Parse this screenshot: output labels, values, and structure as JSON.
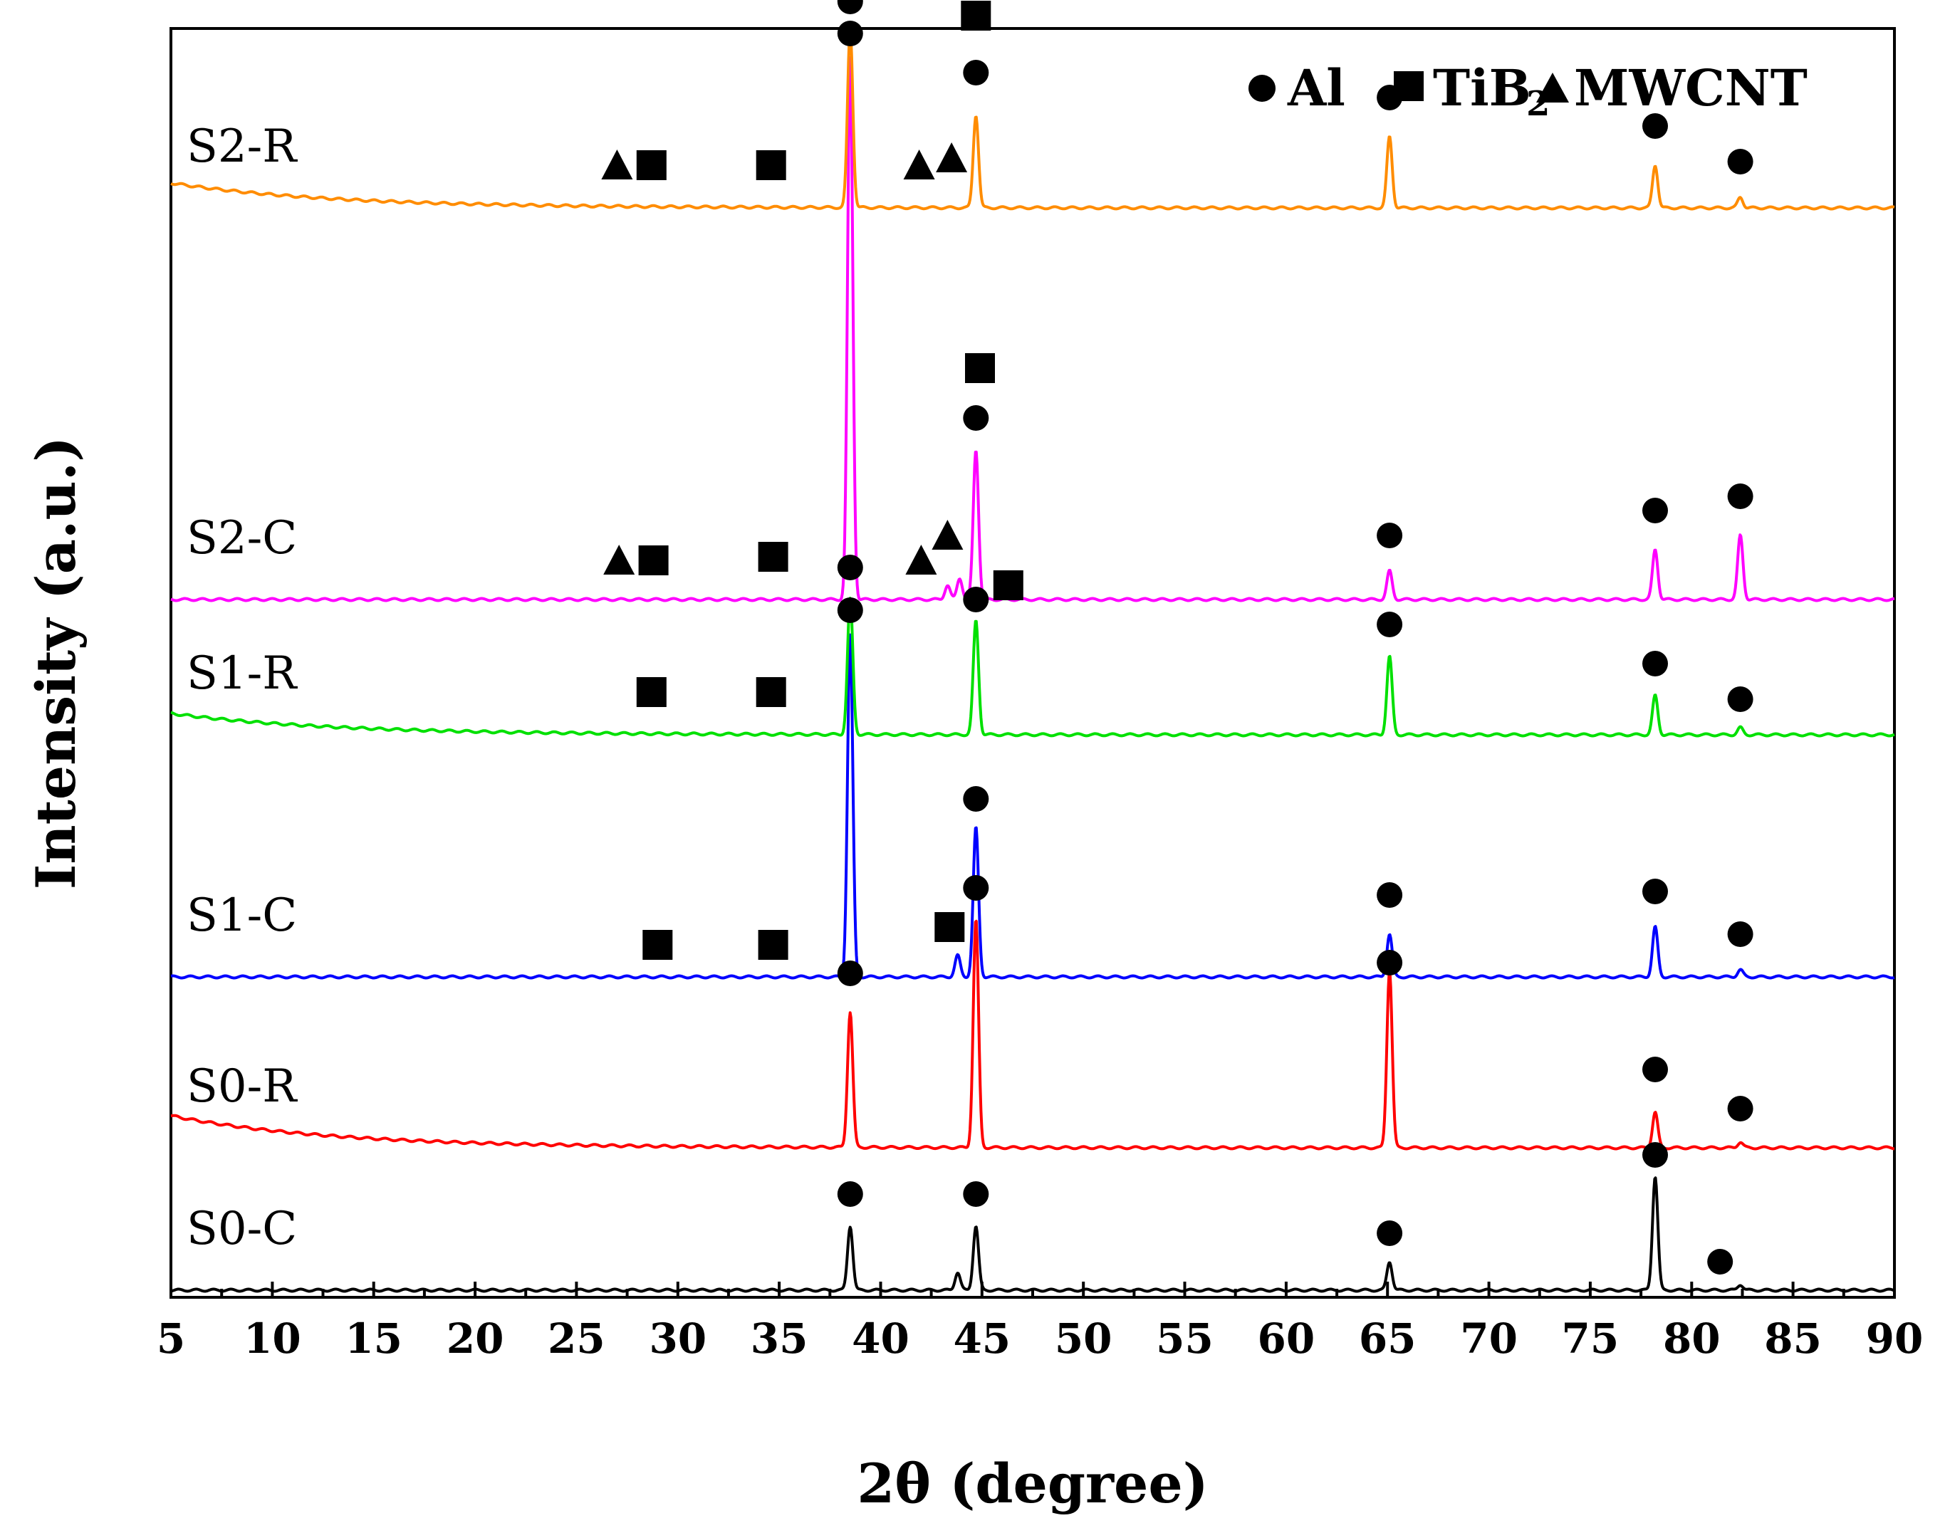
{
  "chart_data": {
    "type": "line",
    "title": "",
    "xlabel": "2θ (degree)",
    "ylabel": "Intensity (a.u.)",
    "xlim": [
      5,
      90
    ],
    "x_ticks": [
      "5",
      "10",
      "15",
      "20",
      "25",
      "30",
      "35",
      "40",
      "45",
      "50",
      "55",
      "60",
      "65",
      "70",
      "75",
      "80",
      "85",
      "90"
    ],
    "y_ticks": "none (arbitrary units, stacked patterns)",
    "legend": {
      "placement": "top-right",
      "entries": [
        {
          "marker": "circle",
          "label": "Al"
        },
        {
          "marker": "square",
          "label": "TiB",
          "subscript": "2"
        },
        {
          "marker": "triangle",
          "label": "MWCNT"
        }
      ]
    },
    "series": [
      {
        "name": "S0-C",
        "color": "#000000",
        "baseline": 0.0,
        "peaks": [
          {
            "x": 38.5,
            "h": 0.09
          },
          {
            "x": 43.8,
            "h": 0.025
          },
          {
            "x": 44.7,
            "h": 0.09
          },
          {
            "x": 65.1,
            "h": 0.04
          },
          {
            "x": 78.2,
            "h": 0.16
          },
          {
            "x": 82.4,
            "h": 0.008
          }
        ],
        "markers": [
          {
            "shape": "circle",
            "x": 38.5,
            "h": 0.135
          },
          {
            "shape": "circle",
            "x": 44.7,
            "h": 0.135
          },
          {
            "shape": "circle",
            "x": 65.1,
            "h": 0.08
          },
          {
            "shape": "circle",
            "x": 78.2,
            "h": 0.19
          },
          {
            "shape": "circle",
            "x": 81.4,
            "h": 0.04
          }
        ]
      },
      {
        "name": "S0-R",
        "color": "#ff0000",
        "baseline": 0.2,
        "start_offset": 0.045,
        "peaks": [
          {
            "x": 38.5,
            "h": 0.19
          },
          {
            "x": 44.7,
            "h": 0.32
          },
          {
            "x": 65.1,
            "h": 0.25
          },
          {
            "x": 78.2,
            "h": 0.05
          },
          {
            "x": 82.4,
            "h": 0.008
          }
        ],
        "markers": [
          {
            "shape": "circle",
            "x": 38.5,
            "h": 0.245
          },
          {
            "shape": "circle",
            "x": 44.7,
            "h": 0.365
          },
          {
            "shape": "circle",
            "x": 65.1,
            "h": 0.26
          },
          {
            "shape": "circle",
            "x": 78.2,
            "h": 0.11
          },
          {
            "shape": "circle",
            "x": 82.4,
            "h": 0.055
          }
        ]
      },
      {
        "name": "S1-C",
        "color": "#0000ff",
        "baseline": 0.44,
        "peaks": [
          {
            "x": 38.5,
            "h": 0.48
          },
          {
            "x": 43.8,
            "h": 0.03
          },
          {
            "x": 44.7,
            "h": 0.21
          },
          {
            "x": 65.1,
            "h": 0.06
          },
          {
            "x": 78.2,
            "h": 0.07
          },
          {
            "x": 82.4,
            "h": 0.01
          }
        ],
        "markers": [
          {
            "shape": "square",
            "x": 29.0,
            "h": 0.045
          },
          {
            "shape": "square",
            "x": 34.7,
            "h": 0.045
          },
          {
            "shape": "square",
            "x": 43.4,
            "h": 0.07
          },
          {
            "shape": "circle",
            "x": 38.5,
            "h": 0.515
          },
          {
            "shape": "circle",
            "x": 44.7,
            "h": 0.25
          },
          {
            "shape": "circle",
            "x": 65.1,
            "h": 0.115
          },
          {
            "shape": "circle",
            "x": 78.2,
            "h": 0.12
          },
          {
            "shape": "circle",
            "x": 82.4,
            "h": 0.06
          }
        ]
      },
      {
        "name": "S1-R",
        "color": "#00e000",
        "baseline": 0.78,
        "start_offset": 0.03,
        "peaks": [
          {
            "x": 38.5,
            "h": 0.19
          },
          {
            "x": 44.7,
            "h": 0.16
          },
          {
            "x": 65.1,
            "h": 0.11
          },
          {
            "x": 78.2,
            "h": 0.055
          },
          {
            "x": 82.4,
            "h": 0.01
          }
        ],
        "markers": [
          {
            "shape": "square",
            "x": 28.7,
            "h": 0.06
          },
          {
            "shape": "square",
            "x": 34.6,
            "h": 0.06
          },
          {
            "shape": "square",
            "x": 46.3,
            "h": 0.21
          },
          {
            "shape": "circle",
            "x": 38.5,
            "h": 0.235
          },
          {
            "shape": "circle",
            "x": 44.7,
            "h": 0.19
          },
          {
            "shape": "circle",
            "x": 65.1,
            "h": 0.155
          },
          {
            "shape": "circle",
            "x": 78.2,
            "h": 0.1
          },
          {
            "shape": "circle",
            "x": 82.4,
            "h": 0.05
          }
        ]
      },
      {
        "name": "S2-C",
        "color": "#ff00ff",
        "baseline": 0.97,
        "peaks": [
          {
            "x": 38.5,
            "h": 0.76
          },
          {
            "x": 43.3,
            "h": 0.02
          },
          {
            "x": 43.9,
            "h": 0.03
          },
          {
            "x": 44.7,
            "h": 0.21
          },
          {
            "x": 65.1,
            "h": 0.04
          },
          {
            "x": 78.2,
            "h": 0.07
          },
          {
            "x": 82.4,
            "h": 0.09
          }
        ],
        "markers": [
          {
            "shape": "triangle",
            "x": 27.1,
            "h": 0.055
          },
          {
            "shape": "square",
            "x": 28.8,
            "h": 0.055
          },
          {
            "shape": "square",
            "x": 34.7,
            "h": 0.06
          },
          {
            "shape": "triangle",
            "x": 42.0,
            "h": 0.055
          },
          {
            "shape": "triangle",
            "x": 43.3,
            "h": 0.09
          },
          {
            "shape": "square",
            "x": 44.9,
            "h": 0.325
          },
          {
            "shape": "circle",
            "x": 38.5,
            "h": 0.795
          },
          {
            "shape": "circle",
            "x": 44.7,
            "h": 0.255
          },
          {
            "shape": "circle",
            "x": 65.1,
            "h": 0.09
          },
          {
            "shape": "circle",
            "x": 78.2,
            "h": 0.125
          },
          {
            "shape": "circle",
            "x": 82.4,
            "h": 0.145
          }
        ]
      },
      {
        "name": "S2-R",
        "color": "#ff8c00",
        "baseline": 1.52,
        "start_offset": 0.035,
        "peaks": [
          {
            "x": 38.5,
            "h": 0.25
          },
          {
            "x": 44.7,
            "h": 0.13
          },
          {
            "x": 65.1,
            "h": 0.1
          },
          {
            "x": 78.2,
            "h": 0.06
          },
          {
            "x": 82.4,
            "h": 0.015
          }
        ],
        "markers": [
          {
            "shape": "triangle",
            "x": 27.0,
            "h": 0.06
          },
          {
            "shape": "square",
            "x": 28.7,
            "h": 0.06
          },
          {
            "shape": "square",
            "x": 34.6,
            "h": 0.06
          },
          {
            "shape": "triangle",
            "x": 41.9,
            "h": 0.06
          },
          {
            "shape": "triangle",
            "x": 43.5,
            "h": 0.07
          },
          {
            "shape": "square",
            "x": 44.7,
            "h": 0.27
          },
          {
            "shape": "circle",
            "x": 38.5,
            "h": 0.29
          },
          {
            "shape": "circle",
            "x": 44.7,
            "h": 0.19
          },
          {
            "shape": "circle",
            "x": 65.1,
            "h": 0.155
          },
          {
            "shape": "circle",
            "x": 78.2,
            "h": 0.115
          },
          {
            "shape": "circle",
            "x": 82.4,
            "h": 0.065
          }
        ]
      }
    ]
  }
}
